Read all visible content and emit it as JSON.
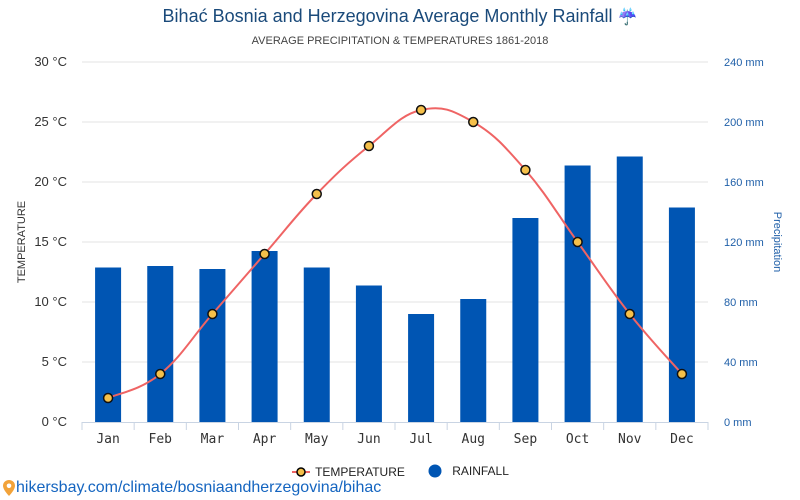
{
  "header": {
    "title": "Bihać Bosnia and Herzegovina Average Monthly Rainfall",
    "title_icon": "umbrella-rain-icon",
    "subtitle": "AVERAGE PRECIPITATION & TEMPERATURES 1861-2018"
  },
  "footer": {
    "icon": "map-pin-icon",
    "link": "hikersbay.com/climate/bosniaandherzegovina/bihac"
  },
  "colors": {
    "bar": "#0055b3",
    "line": "#ef6464",
    "point_fill": "#f5c04a",
    "title": "#1a4a7a",
    "right_axis": "#1f5fa8"
  },
  "chart_data": {
    "type": "bar+line",
    "title": "Bihać Bosnia and Herzegovina Average Monthly Rainfall",
    "subtitle": "AVERAGE PRECIPITATION & TEMPERATURES 1861-2018",
    "categories": [
      "Jan",
      "Feb",
      "Mar",
      "Apr",
      "May",
      "Jun",
      "Jul",
      "Aug",
      "Sep",
      "Oct",
      "Nov",
      "Dec"
    ],
    "series": [
      {
        "name": "TEMPERATURE",
        "type": "line",
        "axis": "left",
        "values": [
          2,
          4,
          9,
          14,
          19,
          23,
          26,
          25,
          21,
          15,
          9,
          4
        ]
      },
      {
        "name": "RAINFALL",
        "type": "bar",
        "axis": "right",
        "values": [
          103,
          104,
          102,
          114,
          103,
          91,
          72,
          82,
          136,
          171,
          177,
          143
        ]
      }
    ],
    "left_axis": {
      "label": "TEMPERATURE",
      "ylim": [
        0,
        30
      ],
      "ticks": [
        "0 °C",
        "5 °C",
        "10 °C",
        "15 °C",
        "20 °C",
        "25 °C",
        "30 °C"
      ]
    },
    "right_axis": {
      "label": "Precipitation",
      "ylim": [
        0,
        240
      ],
      "ticks": [
        "0 mm",
        "40 mm",
        "80 mm",
        "120 mm",
        "160 mm",
        "200 mm",
        "240 mm"
      ]
    },
    "grid": true,
    "legend": {
      "position": "bottom",
      "entries": [
        "TEMPERATURE",
        "RAINFALL"
      ]
    }
  }
}
